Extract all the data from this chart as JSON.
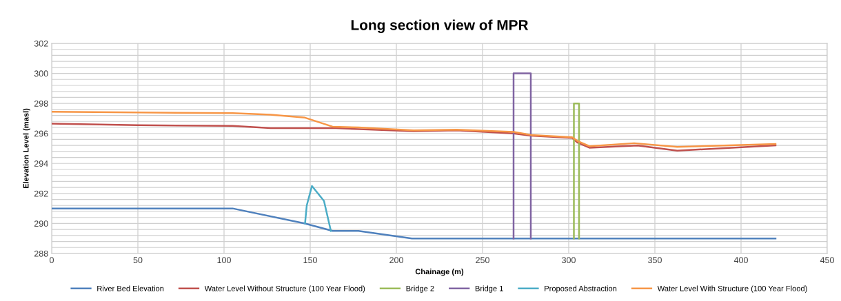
{
  "chart_data": {
    "type": "line",
    "title": "Long section view of MPR",
    "xlabel": "Chainage (m)",
    "ylabel": "Elevation Level (masl)",
    "series": [
      {
        "name": "River Bed Elevation",
        "color": "#4f81bd",
        "x": [
          0,
          105,
          147,
          163,
          178,
          209,
          420
        ],
        "values": [
          291,
          291,
          290,
          289.5,
          289.5,
          289,
          289
        ]
      },
      {
        "name": "Water Level Without Structure (100 Year Flood)",
        "color": "#c0504d",
        "x": [
          0,
          50,
          105,
          127,
          165,
          210,
          235,
          268,
          278,
          302,
          305,
          312,
          340,
          363,
          420
        ],
        "values": [
          296.65,
          296.55,
          296.5,
          296.35,
          296.35,
          296.15,
          296.2,
          296.0,
          295.85,
          295.7,
          295.4,
          295.05,
          295.2,
          294.85,
          295.2
        ]
      },
      {
        "name": "Bridge 2",
        "color": "#9bbb59",
        "x": [
          303,
          303,
          306,
          306
        ],
        "values": [
          289,
          298,
          298,
          289
        ]
      },
      {
        "name": "Bridge 1",
        "color": "#8064a2",
        "x": [
          268,
          268,
          278,
          278
        ],
        "values": [
          289,
          300,
          300,
          289
        ]
      },
      {
        "name": "Proposed Abstraction",
        "color": "#4bacc6",
        "x": [
          147,
          148,
          151,
          158,
          162
        ],
        "values": [
          290,
          291.2,
          292.5,
          291.5,
          289.5
        ]
      },
      {
        "name": "Water Level With Structure (100 Year Flood)",
        "color": "#f79646",
        "x": [
          0,
          50,
          105,
          127,
          147,
          163,
          178,
          210,
          235,
          268,
          278,
          302,
          305,
          312,
          338,
          363,
          420
        ],
        "values": [
          297.45,
          297.4,
          297.35,
          297.25,
          297.05,
          296.45,
          296.4,
          296.2,
          296.25,
          296.1,
          295.9,
          295.75,
          295.5,
          295.15,
          295.35,
          295.1,
          295.3
        ]
      }
    ],
    "xlim": [
      0,
      450
    ],
    "xticks": [
      0,
      50,
      100,
      150,
      200,
      250,
      300,
      350,
      400,
      450
    ],
    "ylim": [
      288,
      302
    ],
    "yticks": [
      288,
      {
        "value": 288.4,
        "label": null
      },
      {
        "value": 288.8,
        "label": null
      },
      {
        "value": 289.2,
        "label": null
      },
      {
        "value": 289.6,
        "label": null
      },
      290,
      {
        "value": 290.4,
        "label": null
      },
      {
        "value": 290.8,
        "label": null
      },
      {
        "value": 291.2,
        "label": null
      },
      {
        "value": 291.6,
        "label": null
      },
      292,
      {
        "value": 292.4,
        "label": null
      },
      {
        "value": 292.8,
        "label": null
      },
      {
        "value": 293.2,
        "label": null
      },
      {
        "value": 293.6,
        "label": null
      },
      294,
      {
        "value": 294.4,
        "label": null
      },
      {
        "value": 294.8,
        "label": null
      },
      {
        "value": 295.2,
        "label": null
      },
      {
        "value": 295.6,
        "label": null
      },
      296,
      {
        "value": 296.4,
        "label": null
      },
      {
        "value": 296.8,
        "label": null
      },
      {
        "value": 297.2,
        "label": null
      },
      {
        "value": 297.6,
        "label": null
      },
      298,
      {
        "value": 298.4,
        "label": null
      },
      {
        "value": 298.8,
        "label": null
      },
      {
        "value": 299.2,
        "label": null
      },
      {
        "value": 299.6,
        "label": null
      },
      300,
      {
        "value": 300.4,
        "label": null
      },
      {
        "value": 300.8,
        "label": null
      },
      {
        "value": 301.2,
        "label": null
      },
      {
        "value": 301.6,
        "label": null
      },
      302
    ],
    "grid": true,
    "legend": "bottom",
    "marker": "none",
    "line_style": "solid"
  }
}
